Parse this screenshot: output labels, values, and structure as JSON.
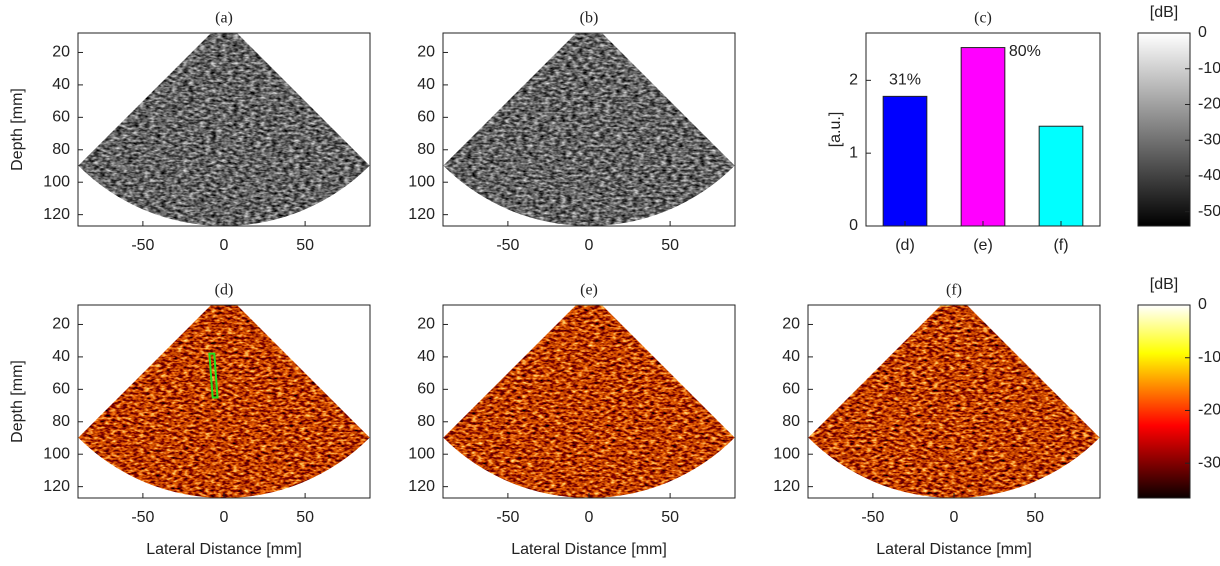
{
  "chart_data": [
    {
      "type": "image",
      "title": "(a)",
      "ylabel": "Depth [mm]",
      "xlim": [
        -90,
        90
      ],
      "ylim": [
        8,
        127
      ],
      "y_reversed": true,
      "xticks": [
        -50,
        0,
        50
      ],
      "yticks": [
        20,
        40,
        60,
        80,
        100,
        120
      ],
      "colormap": "gray"
    },
    {
      "type": "image",
      "title": "(b)",
      "xlim": [
        -90,
        90
      ],
      "ylim": [
        8,
        127
      ],
      "y_reversed": true,
      "xticks": [
        -50,
        0,
        50
      ],
      "yticks": [
        20,
        40,
        60,
        80,
        100,
        120
      ],
      "colormap": "gray"
    },
    {
      "type": "bar",
      "title": "(c)",
      "ylabel": "[a.u.]",
      "categories": [
        "(d)",
        "(e)",
        "(f)"
      ],
      "values": [
        1.78,
        2.45,
        1.37
      ],
      "colors": [
        "#0000ff",
        "#ff00ff",
        "#00ffff"
      ],
      "annotations": [
        "31%",
        "80%"
      ],
      "ylim": [
        0,
        2.65
      ],
      "yticks": [
        0,
        1,
        2
      ]
    },
    {
      "type": "colorbar",
      "label": "[dB]",
      "ylim": [
        -54,
        0
      ],
      "yticks": [
        -50,
        -40,
        -30,
        -20,
        -10,
        0
      ],
      "colormap": "gray"
    },
    {
      "type": "image",
      "title": "(d)",
      "ylabel": "Depth [mm]",
      "xlabel": "Lateral Distance [mm]",
      "xlim": [
        -90,
        90
      ],
      "ylim": [
        8,
        127
      ],
      "y_reversed": true,
      "xticks": [
        -50,
        0,
        50
      ],
      "yticks": [
        20,
        40,
        60,
        80,
        100,
        120
      ],
      "colormap": "hot"
    },
    {
      "type": "image",
      "title": "(e)",
      "xlabel": "Lateral Distance [mm]",
      "xlim": [
        -90,
        90
      ],
      "ylim": [
        8,
        127
      ],
      "y_reversed": true,
      "xticks": [
        -50,
        0,
        50
      ],
      "yticks": [
        20,
        40,
        60,
        80,
        100,
        120
      ],
      "colormap": "hot"
    },
    {
      "type": "image",
      "title": "(f)",
      "xlabel": "Lateral Distance [mm]",
      "xlim": [
        -90,
        90
      ],
      "ylim": [
        8,
        127
      ],
      "y_reversed": true,
      "xticks": [
        -50,
        0,
        50
      ],
      "yticks": [
        20,
        40,
        60,
        80,
        100,
        120
      ],
      "colormap": "hot"
    },
    {
      "type": "colorbar",
      "label": "[dB]",
      "ylim": [
        -36.6,
        0
      ],
      "yticks": [
        -30,
        -20,
        -10,
        0
      ],
      "colormap": "hot"
    }
  ]
}
